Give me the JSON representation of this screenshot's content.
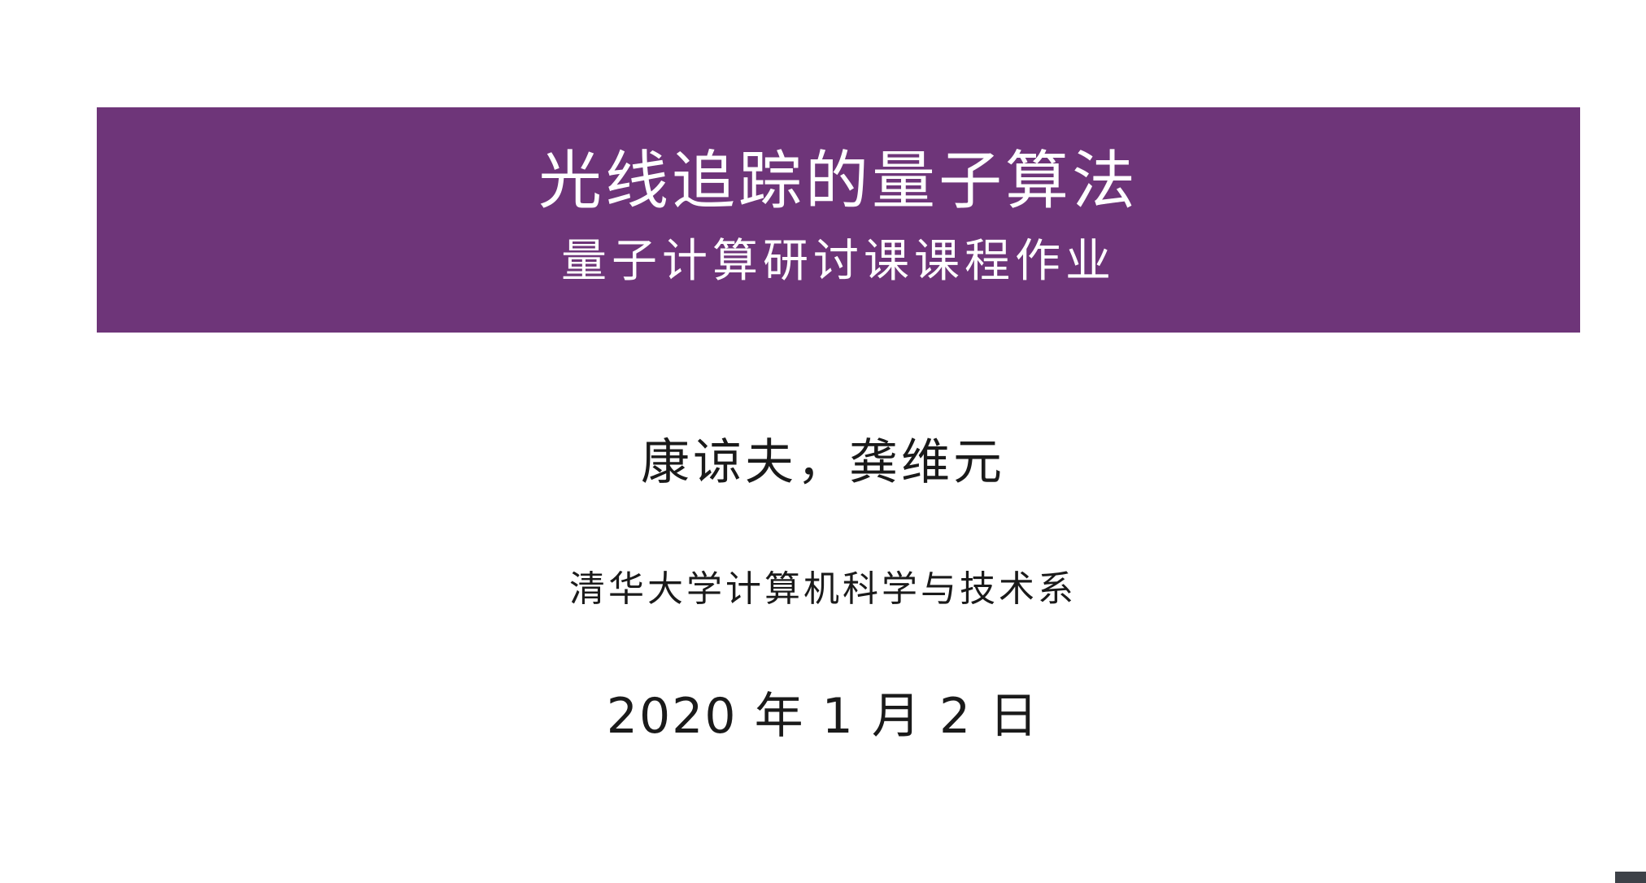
{
  "slide": {
    "title": "光线追踪的量子算法",
    "subtitle": "量子计算研讨课课程作业",
    "authors": "康谅夫，龚维元",
    "institute": "清华大学计算机科学与技术系",
    "date": "2020 年 1 月 2 日"
  },
  "colors": {
    "banner": "#6e3579",
    "banner_text": "#ffffff",
    "body_text": "#1a1a1a",
    "corner_mark": "#3d4148"
  }
}
